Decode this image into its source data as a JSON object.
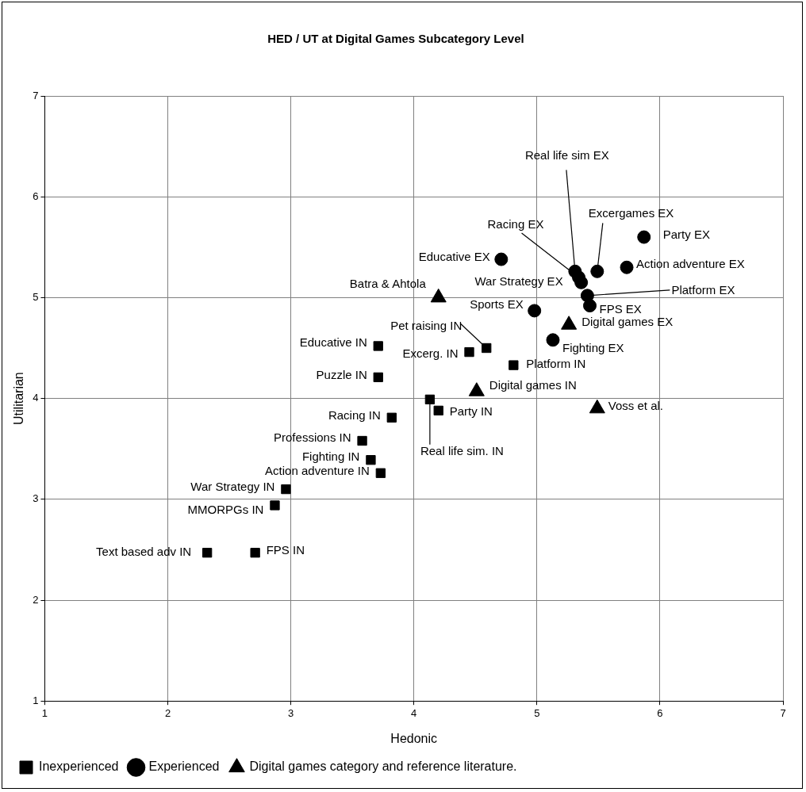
{
  "chart_data": {
    "type": "scatter",
    "title": "HED / UT at Digital Games Subcategory Level",
    "xlabel": "Hedonic",
    "ylabel": "Utilitarian",
    "xlim": [
      1,
      7
    ],
    "ylim": [
      1,
      7
    ],
    "xticks": [
      1,
      2,
      3,
      4,
      5,
      6,
      7
    ],
    "yticks": [
      1,
      2,
      3,
      4,
      5,
      6,
      7
    ],
    "grid": true,
    "legend": "bottom",
    "series": [
      {
        "name": "Inexperienced",
        "color": "#000000",
        "marker": "square",
        "x": [
          2.32,
          2.71,
          2.87,
          2.96,
          3.73,
          3.65,
          3.58,
          3.82,
          3.71,
          3.71,
          4.45,
          4.59,
          4.81,
          4.2,
          4.13
        ],
        "values": [
          2.47,
          2.47,
          2.94,
          3.1,
          3.26,
          3.39,
          3.58,
          3.81,
          4.21,
          4.52,
          4.46,
          4.5,
          4.33,
          3.88,
          3.99
        ]
      },
      {
        "name": "Experienced",
        "color": "#000000",
        "marker": "circle",
        "x": [
          4.71,
          5.87,
          5.73,
          5.49,
          5.31,
          5.36,
          5.41,
          5.43,
          4.98,
          5.13,
          5.34
        ],
        "values": [
          5.38,
          5.6,
          5.3,
          5.26,
          5.26,
          5.15,
          5.02,
          4.92,
          4.87,
          4.58,
          5.2
        ]
      },
      {
        "name": "Digital games category and reference literature.",
        "color": "#000000",
        "marker": "triangle",
        "x": [
          4.2,
          5.26,
          4.51,
          5.49
        ],
        "values": [
          5.0,
          4.73,
          4.07,
          3.9
        ]
      }
    ],
    "annotations": [
      {
        "text": "Text based adv IN",
        "x": 2.32,
        "y": 2.47
      },
      {
        "text": "FPS IN",
        "x": 2.71,
        "y": 2.47
      },
      {
        "text": "MMORPGs IN",
        "x": 2.87,
        "y": 2.94
      },
      {
        "text": "War Strategy IN",
        "x": 2.96,
        "y": 3.1
      },
      {
        "text": "Action adventure IN",
        "x": 3.73,
        "y": 3.26
      },
      {
        "text": "Fighting IN",
        "x": 3.65,
        "y": 3.39
      },
      {
        "text": "Professions IN",
        "x": 3.58,
        "y": 3.58
      },
      {
        "text": "Racing IN",
        "x": 3.82,
        "y": 3.81
      },
      {
        "text": "Puzzle IN",
        "x": 3.71,
        "y": 4.21
      },
      {
        "text": "Educative IN",
        "x": 3.71,
        "y": 4.52
      },
      {
        "text": "Excerg. IN",
        "x": 4.45,
        "y": 4.46
      },
      {
        "text": "Pet raising IN",
        "x": 4.59,
        "y": 4.5
      },
      {
        "text": "Platform IN",
        "x": 4.81,
        "y": 4.33
      },
      {
        "text": "Party IN",
        "x": 4.2,
        "y": 3.88
      },
      {
        "text": "Real life sim. IN",
        "x": 4.13,
        "y": 3.99
      },
      {
        "text": "Educative EX",
        "x": 4.71,
        "y": 5.38
      },
      {
        "text": "Party EX",
        "x": 5.87,
        "y": 5.6
      },
      {
        "text": "Action adventure EX",
        "x": 5.73,
        "y": 5.3
      },
      {
        "text": "Excergames EX",
        "x": 5.49,
        "y": 5.26
      },
      {
        "text": "Real life sim EX",
        "x": 5.31,
        "y": 5.26
      },
      {
        "text": "Racing EX",
        "x": 5.34,
        "y": 5.2
      },
      {
        "text": "War Strategy EX",
        "x": 5.36,
        "y": 5.15
      },
      {
        "text": "Platform EX",
        "x": 5.41,
        "y": 5.02
      },
      {
        "text": "FPS EX",
        "x": 5.43,
        "y": 4.92
      },
      {
        "text": "Sports EX",
        "x": 4.98,
        "y": 4.87
      },
      {
        "text": "Fighting EX",
        "x": 5.13,
        "y": 4.58
      },
      {
        "text": "Batra & Ahtola",
        "x": 4.2,
        "y": 5.0
      },
      {
        "text": "Digital games EX",
        "x": 5.26,
        "y": 4.73
      },
      {
        "text": "Digital games IN",
        "x": 4.51,
        "y": 4.07
      },
      {
        "text": "Voss et al.",
        "x": 5.49,
        "y": 3.9
      }
    ]
  }
}
